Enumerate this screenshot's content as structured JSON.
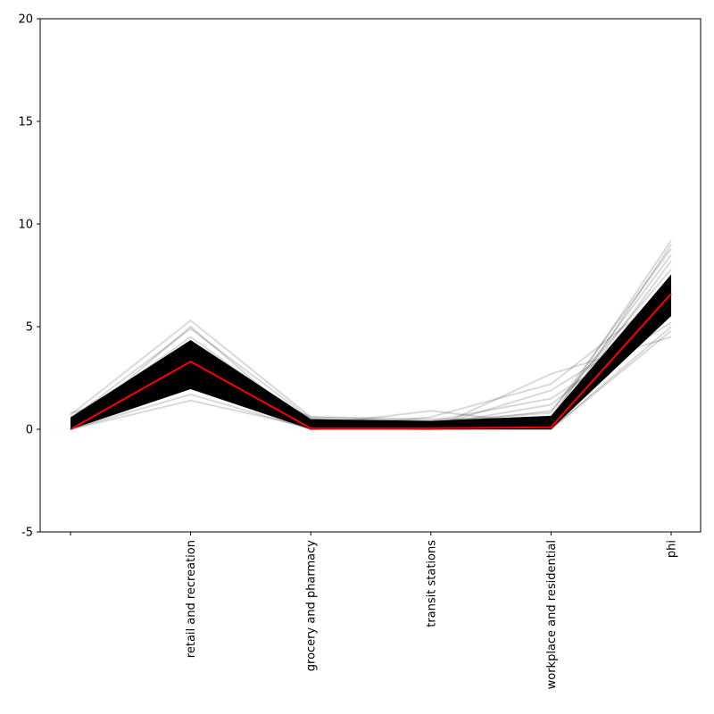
{
  "chart_data": {
    "type": "line",
    "title": "",
    "xlabel": "",
    "ylabel": "",
    "categories": [
      "",
      "retail and recreation",
      "grocery and pharmacy",
      "transit stations",
      "workplace and residential",
      "phi"
    ],
    "ylim": [
      -5,
      20
    ],
    "yticks": [
      -5,
      0,
      5,
      10,
      15,
      20
    ],
    "grid": false,
    "legend": "none",
    "series": [
      {
        "role": "sample",
        "color": "#000000",
        "values": [
          0.1,
          3.3,
          0.05,
          0.05,
          0.1,
          6.6
        ]
      },
      {
        "role": "sample",
        "color": "#000000",
        "values": [
          0.3,
          4.5,
          0.3,
          0.2,
          0.3,
          8.2
        ]
      },
      {
        "role": "sample",
        "color": "#000000",
        "values": [
          0.0,
          2.0,
          0.0,
          0.0,
          0.0,
          5.0
        ]
      },
      {
        "role": "sample",
        "color": "#000000",
        "values": [
          0.5,
          4.9,
          0.5,
          0.4,
          0.8,
          8.8
        ]
      },
      {
        "role": "sample",
        "color": "#000000",
        "values": [
          0.0,
          1.7,
          0.0,
          0.0,
          0.0,
          4.8
        ]
      },
      {
        "role": "sample",
        "color": "#000000",
        "values": [
          0.7,
          5.3,
          0.6,
          0.5,
          0.5,
          9.2
        ]
      },
      {
        "role": "sample",
        "color": "#000000",
        "values": [
          0.0,
          1.4,
          0.1,
          0.0,
          2.7,
          4.5
        ]
      },
      {
        "role": "sample",
        "color": "#000000",
        "values": [
          0.2,
          3.8,
          0.2,
          0.9,
          0.2,
          7.5
        ]
      },
      {
        "role": "sample",
        "color": "#000000",
        "values": [
          0.4,
          2.5,
          0.4,
          0.1,
          1.9,
          5.5
        ]
      },
      {
        "role": "sample",
        "color": "#000000",
        "values": [
          0.6,
          4.2,
          0.1,
          0.3,
          0.6,
          8.5
        ]
      },
      {
        "role": "sample",
        "color": "#000000",
        "values": [
          0.1,
          2.8,
          0.3,
          0.2,
          1.2,
          6.0
        ]
      },
      {
        "role": "sample",
        "color": "#000000",
        "values": [
          0.3,
          3.6,
          0.5,
          0.1,
          0.4,
          7.0
        ]
      },
      {
        "role": "sample",
        "color": "#000000",
        "values": [
          0.0,
          5.0,
          0.0,
          0.6,
          2.2,
          6.8
        ]
      },
      {
        "role": "sample",
        "color": "#000000",
        "values": [
          0.8,
          2.2,
          0.2,
          0.0,
          0.1,
          9.0
        ]
      },
      {
        "role": "sample",
        "color": "#000000",
        "values": [
          0.2,
          3.0,
          0.6,
          0.4,
          1.5,
          5.2
        ]
      },
      {
        "role": "sample",
        "color": "#000000",
        "values": [
          0.4,
          4.0,
          0.0,
          0.2,
          0.9,
          7.8
        ]
      },
      {
        "role": "mean",
        "color": "#ff0000",
        "values": [
          0.0,
          3.3,
          0.05,
          0.05,
          0.1,
          6.6
        ]
      }
    ]
  }
}
